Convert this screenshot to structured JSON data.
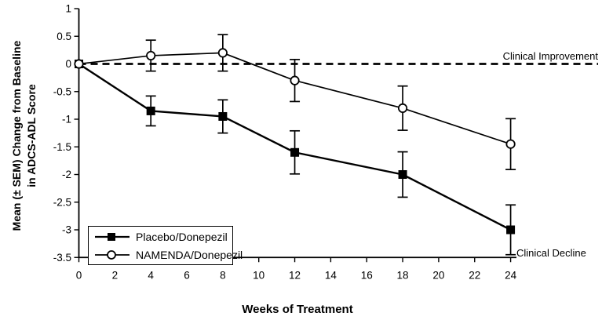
{
  "chart_data": {
    "type": "line",
    "title": "",
    "xlabel": "Weeks of Treatment",
    "ylabel": "Mean (± SEM) Change from Baseline in ADCS-ADL Score",
    "ylabel_line1": "Mean (± SEM) Change from Baseline",
    "ylabel_line2": "in ADCS-ADL Score",
    "x": [
      0,
      4,
      8,
      12,
      18,
      24
    ],
    "xlim": [
      0,
      24
    ],
    "ylim": [
      -3.5,
      1
    ],
    "x_ticks": [
      0,
      2,
      4,
      6,
      8,
      10,
      12,
      14,
      16,
      18,
      20,
      22,
      24
    ],
    "y_ticks": [
      1,
      0.5,
      0,
      -0.5,
      -1,
      -1.5,
      -2,
      -2.5,
      -3,
      -3.5
    ],
    "grid": false,
    "legend_position": "bottom-left",
    "reference_line": {
      "y": 0,
      "style": "dashed",
      "label_above": "Clinical Improvement",
      "label_below": "Clinical Decline"
    },
    "series": [
      {
        "name": "Placebo/Donepezil",
        "marker": "filled-square",
        "values": [
          0,
          -0.85,
          -0.95,
          -1.6,
          -2.0,
          -3.0
        ],
        "sem": [
          0,
          0.27,
          0.3,
          0.39,
          0.41,
          0.45
        ]
      },
      {
        "name": "NAMENDA/Donepezil",
        "marker": "open-circle",
        "values": [
          0,
          0.15,
          0.2,
          -0.3,
          -0.8,
          -1.45
        ],
        "sem": [
          0,
          0.28,
          0.33,
          0.38,
          0.4,
          0.46
        ]
      }
    ]
  },
  "colors": {
    "line": "#000000",
    "background": "#ffffff"
  }
}
